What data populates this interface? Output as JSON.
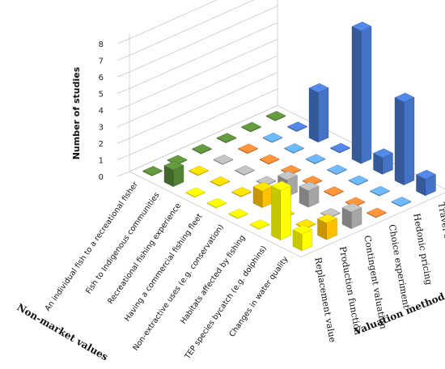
{
  "chart_data": {
    "type": "bar3d",
    "zlabel": "Number of studies",
    "xlabel": "Non-market values",
    "ylabel": "Valuation method",
    "z_ticks": [
      0,
      1,
      2,
      3,
      4,
      5,
      6,
      7,
      8
    ],
    "zlim": [
      0,
      8
    ],
    "categories": [
      "An individual fish to a recreational fisher",
      "Fish to Indigenous communities",
      "Recreational fishing experience",
      "Having a commercial fishing fleet",
      "Non-extractive uses (e.g. conservation)",
      "Habitats affected by fishing",
      "TEP species bycatch (e.g. dolphins)",
      "Changes in water quality"
    ],
    "methods": [
      "Replacement value",
      "Production function",
      "Contingent valuation",
      "Choice experiment",
      "Hedonic pricing",
      "Travel cost"
    ],
    "series": [
      {
        "name": "Replacement value",
        "color": "#ffff00",
        "values": [
          0,
          0,
          0,
          0,
          0,
          0,
          3,
          1
        ]
      },
      {
        "name": "Production function",
        "color": "#ffc000",
        "values": [
          0,
          0,
          0,
          0,
          1,
          0,
          0,
          1
        ]
      },
      {
        "name": "Contingent valuation",
        "color": "#a5a5a5",
        "values": [
          0,
          0,
          0,
          0,
          1,
          1,
          0,
          1
        ]
      },
      {
        "name": "Choice experiment",
        "color": "#ed7d31",
        "values": [
          0,
          0,
          0,
          0,
          0,
          0,
          0,
          0
        ]
      },
      {
        "name": "Hedonic pricing",
        "color": "#5b9bd5",
        "values": [
          0,
          0,
          0,
          0,
          0,
          0,
          0,
          0
        ]
      },
      {
        "name": "Travel cost",
        "color": "#4472c4",
        "values": [
          0,
          0,
          3,
          0,
          8,
          1,
          5,
          1
        ]
      }
    ],
    "indigenous_series": {
      "name": "Fish to Indigenous communities",
      "color": "#548235",
      "row": 1,
      "method": 0,
      "value": 1
    },
    "grid": true
  }
}
